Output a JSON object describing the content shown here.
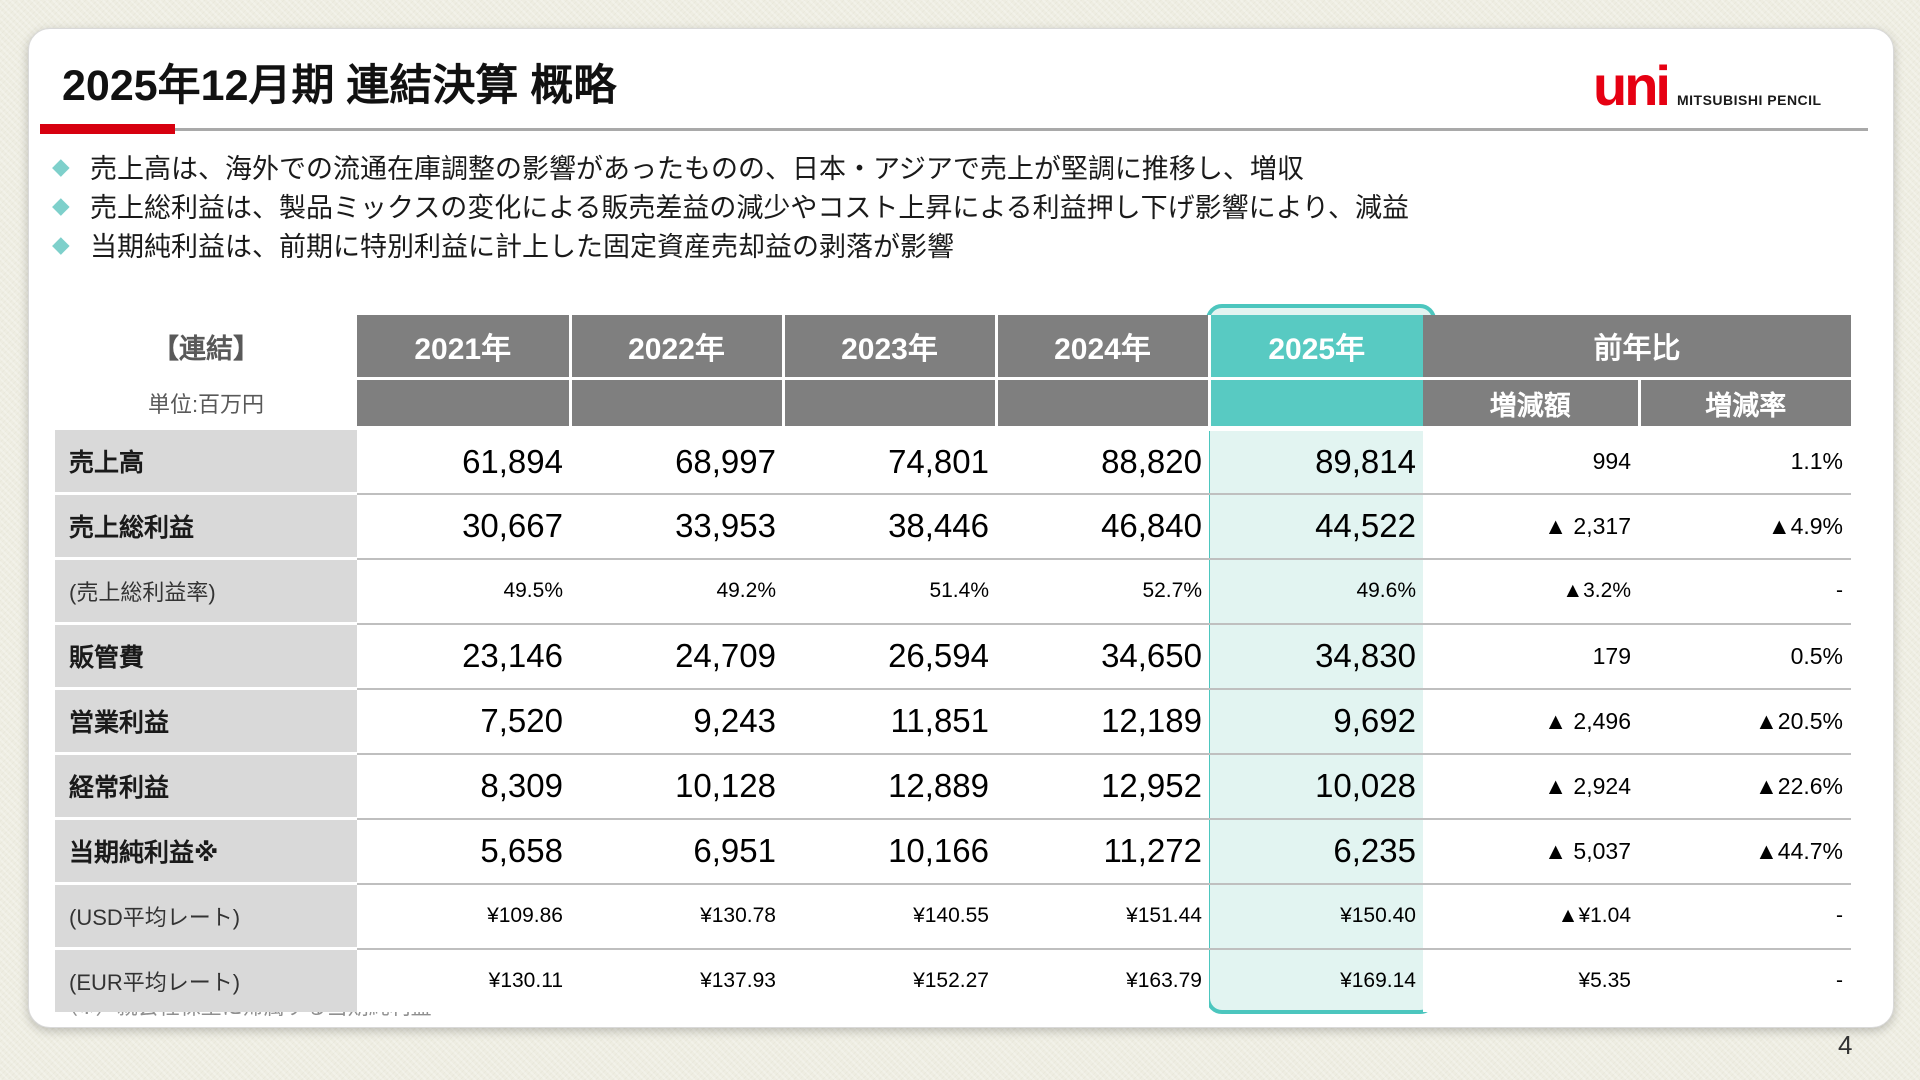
{
  "slide": {
    "title": "2025年12月期 連結決算 概略",
    "logo": {
      "brand": "uni",
      "company": "MITSUBISHI PENCIL"
    },
    "bullets": [
      "売上高は、海外での流通在庫調整の影響があったものの、日本・アジアで売上が堅調に推移し、増収",
      "売上総利益は、製品ミックスの変化による販売差益の減少やコスト上昇による利益押し下げ影響により、減益",
      "当期純利益は、前期に特別利益に計上した固定資産売却益の剥落が影響"
    ],
    "bullet_icon": "diamond-icon",
    "table": {
      "corner_label": "【連結】",
      "unit_label": "単位:百万円",
      "col_headers": [
        "2021年",
        "2022年",
        "2023年",
        "2024年",
        "2025年"
      ],
      "highlight_column": "2025年",
      "yoy_header": "前年比",
      "yoy_sub_headers": [
        "増減額",
        "増減率"
      ],
      "rows": [
        {
          "label": "売上高",
          "type": "main",
          "values": [
            "61,894",
            "68,997",
            "74,801",
            "88,820",
            "89,814"
          ],
          "yoy_amount": "994",
          "yoy_rate": "1.1%"
        },
        {
          "label": "売上総利益",
          "type": "main",
          "values": [
            "30,667",
            "33,953",
            "38,446",
            "46,840",
            "44,522"
          ],
          "yoy_amount": "▲ 2,317",
          "yoy_rate": "▲4.9%"
        },
        {
          "label": "(売上総利益率)",
          "type": "sub",
          "values": [
            "49.5%",
            "49.2%",
            "51.4%",
            "52.7%",
            "49.6%"
          ],
          "yoy_amount": "▲3.2%",
          "yoy_rate": "-"
        },
        {
          "label": "販管費",
          "type": "main",
          "values": [
            "23,146",
            "24,709",
            "26,594",
            "34,650",
            "34,830"
          ],
          "yoy_amount": "179",
          "yoy_rate": "0.5%"
        },
        {
          "label": "営業利益",
          "type": "main",
          "values": [
            "7,520",
            "9,243",
            "11,851",
            "12,189",
            "9,692"
          ],
          "yoy_amount": "▲ 2,496",
          "yoy_rate": "▲20.5%"
        },
        {
          "label": "経常利益",
          "type": "main",
          "values": [
            "8,309",
            "10,128",
            "12,889",
            "12,952",
            "10,028"
          ],
          "yoy_amount": "▲ 2,924",
          "yoy_rate": "▲22.6%"
        },
        {
          "label": "当期純利益※",
          "type": "main",
          "values": [
            "5,658",
            "6,951",
            "10,166",
            "11,272",
            "6,235"
          ],
          "yoy_amount": "▲ 5,037",
          "yoy_rate": "▲44.7%"
        },
        {
          "label": "(USD平均レート)",
          "type": "sub",
          "values": [
            "¥109.86",
            "¥130.78",
            "¥140.55",
            "¥151.44",
            "¥150.40"
          ],
          "yoy_amount": "▲¥1.04",
          "yoy_rate": "-"
        },
        {
          "label": "(EUR平均レート)",
          "type": "sub",
          "values": [
            "¥130.11",
            "¥137.93",
            "¥152.27",
            "¥163.79",
            "¥169.14"
          ],
          "yoy_amount": "¥5.35",
          "yoy_rate": "-"
        }
      ]
    },
    "footnote": "（※）親会社株主に帰属する当期純利益",
    "colors": {
      "accent_red": "#d7000f",
      "logo_red": "#e60012",
      "header_gray": "#7f7f7f",
      "label_gray": "#d9d9d9",
      "highlight_teal": "#4cc6be",
      "highlight_fill": "#e2f4f1",
      "bullet_teal": "#7ed0cb",
      "page_background": "#eeede2"
    }
  },
  "page": {
    "number": "4"
  }
}
